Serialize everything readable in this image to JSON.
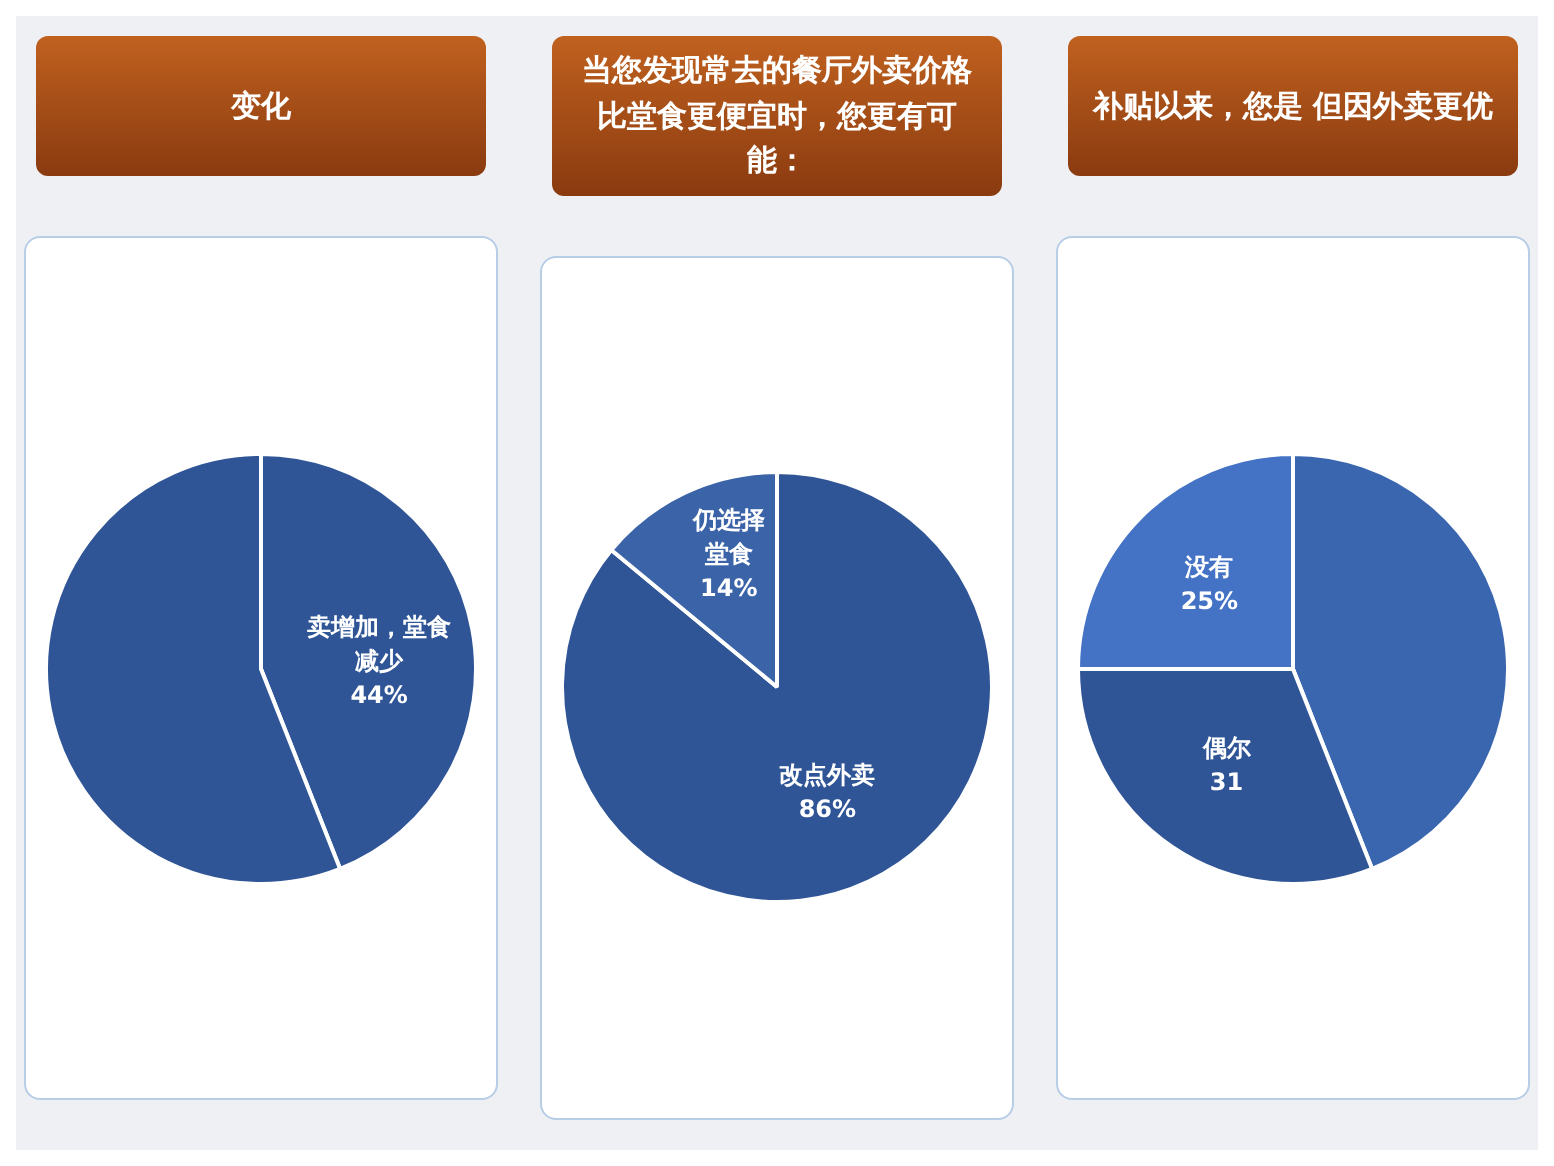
{
  "chart_data": [
    {
      "type": "pie",
      "title": "变化",
      "categories": [
        "卖增加，堂食减少",
        null
      ],
      "values": [
        44,
        56
      ],
      "colors": [
        "#2f5597",
        "#2f5597"
      ],
      "value_labels": [
        "44%",
        null
      ]
    },
    {
      "type": "pie",
      "title": "当您发现常去的餐厅外卖价格比堂食更便宜时，您更有可能：",
      "categories": [
        "改点外卖",
        "仍选择堂食"
      ],
      "values": [
        86,
        14
      ],
      "colors": [
        "#2f5597",
        "#3b63a8"
      ],
      "value_labels": [
        "86%",
        "14%"
      ]
    },
    {
      "type": "pie",
      "title": "补贴以来，您是 但因外卖更优",
      "categories": [
        null,
        "偶尔",
        "没有"
      ],
      "values": [
        44,
        31,
        25
      ],
      "colors": [
        "#3a66b0",
        "#2f5597",
        "#4472c4"
      ],
      "value_labels": [
        null,
        "31",
        "25%"
      ]
    }
  ]
}
